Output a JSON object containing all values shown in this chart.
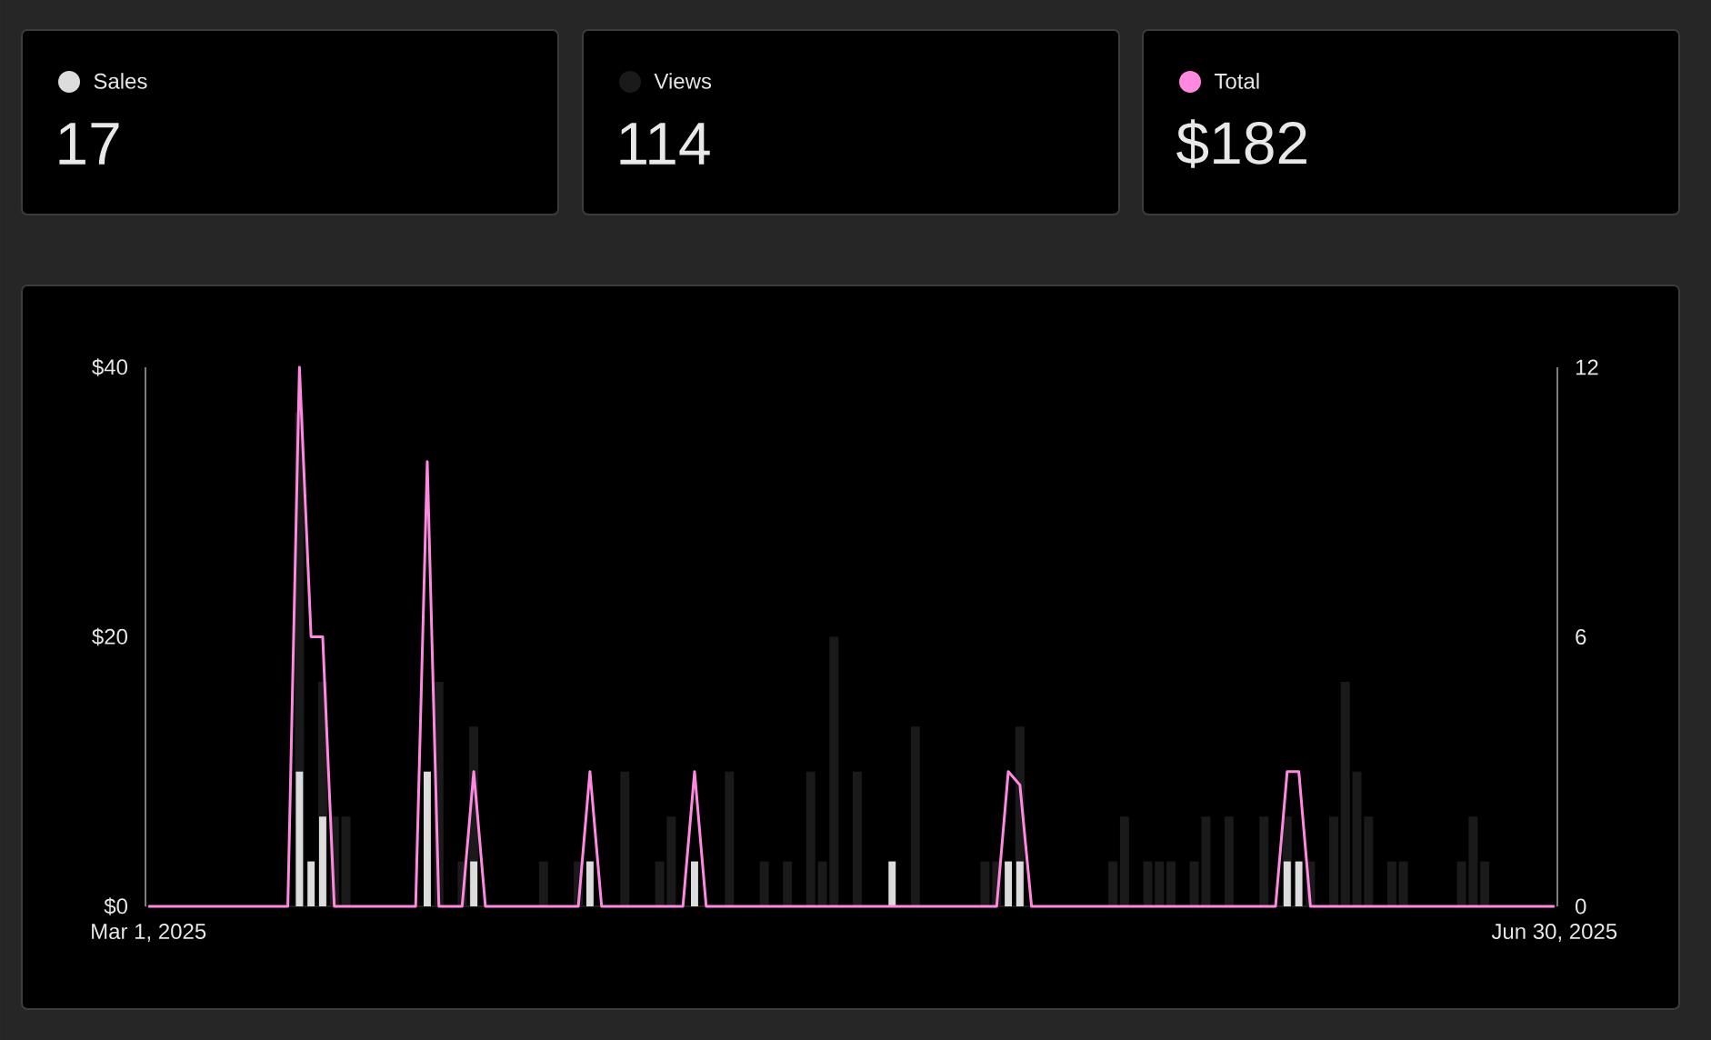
{
  "chart_data": {
    "type": "bar",
    "x": [
      "2025-03-01",
      "2025-03-02",
      "2025-03-03",
      "2025-03-04",
      "2025-03-05",
      "2025-03-06",
      "2025-03-07",
      "2025-03-08",
      "2025-03-09",
      "2025-03-10",
      "2025-03-11",
      "2025-03-12",
      "2025-03-13",
      "2025-03-14",
      "2025-03-15",
      "2025-03-16",
      "2025-03-17",
      "2025-03-18",
      "2025-03-19",
      "2025-03-20",
      "2025-03-21",
      "2025-03-22",
      "2025-03-23",
      "2025-03-24",
      "2025-03-25",
      "2025-03-26",
      "2025-03-27",
      "2025-03-28",
      "2025-03-29",
      "2025-03-30",
      "2025-03-31",
      "2025-04-01",
      "2025-04-02",
      "2025-04-03",
      "2025-04-04",
      "2025-04-05",
      "2025-04-06",
      "2025-04-07",
      "2025-04-08",
      "2025-04-09",
      "2025-04-10",
      "2025-04-11",
      "2025-04-12",
      "2025-04-13",
      "2025-04-14",
      "2025-04-15",
      "2025-04-16",
      "2025-04-17",
      "2025-04-18",
      "2025-04-19",
      "2025-04-20",
      "2025-04-21",
      "2025-04-22",
      "2025-04-23",
      "2025-04-24",
      "2025-04-25",
      "2025-04-26",
      "2025-04-27",
      "2025-04-28",
      "2025-04-29",
      "2025-04-30",
      "2025-05-01",
      "2025-05-02",
      "2025-05-03",
      "2025-05-04",
      "2025-05-05",
      "2025-05-06",
      "2025-05-07",
      "2025-05-08",
      "2025-05-09",
      "2025-05-10",
      "2025-05-11",
      "2025-05-12",
      "2025-05-13",
      "2025-05-14",
      "2025-05-15",
      "2025-05-16",
      "2025-05-17",
      "2025-05-18",
      "2025-05-19",
      "2025-05-20",
      "2025-05-21",
      "2025-05-22",
      "2025-05-23",
      "2025-05-24",
      "2025-05-25",
      "2025-05-26",
      "2025-05-27",
      "2025-05-28",
      "2025-05-29",
      "2025-05-30",
      "2025-05-31",
      "2025-06-01",
      "2025-06-02",
      "2025-06-03",
      "2025-06-04",
      "2025-06-05",
      "2025-06-06",
      "2025-06-07",
      "2025-06-08",
      "2025-06-09",
      "2025-06-10",
      "2025-06-11",
      "2025-06-12",
      "2025-06-13",
      "2025-06-14",
      "2025-06-15",
      "2025-06-16",
      "2025-06-17",
      "2025-06-18",
      "2025-06-19",
      "2025-06-20",
      "2025-06-21",
      "2025-06-22",
      "2025-06-23",
      "2025-06-24",
      "2025-06-25",
      "2025-06-26",
      "2025-06-27",
      "2025-06-28",
      "2025-06-29",
      "2025-06-30"
    ],
    "xlim": [
      "2025-03-01",
      "2025-06-30"
    ],
    "xticks": [
      {
        "value": "2025-03-01",
        "label": "Mar 1, 2025"
      },
      {
        "value": "2025-06-30",
        "label": "Jun 30, 2025"
      }
    ],
    "ylim": [
      0,
      40
    ],
    "yticks": [
      {
        "value": 0,
        "label": "$0"
      },
      {
        "value": 20,
        "label": "$20"
      },
      {
        "value": 40,
        "label": "$40"
      }
    ],
    "y2lim": [
      0,
      12
    ],
    "y2ticks": [
      0,
      6,
      12
    ],
    "legend": "top",
    "series": [
      {
        "name": "Sales",
        "color": "#dcdcdc",
        "axis": "y2",
        "values": [
          0,
          0,
          0,
          0,
          0,
          0,
          0,
          0,
          0,
          0,
          0,
          0,
          0,
          3,
          1,
          2,
          0,
          0,
          0,
          0,
          0,
          0,
          0,
          0,
          3,
          0,
          0,
          0,
          1,
          0,
          0,
          0,
          0,
          0,
          0,
          0,
          0,
          0,
          1,
          0,
          0,
          0,
          0,
          0,
          0,
          0,
          0,
          1,
          0,
          0,
          0,
          0,
          0,
          0,
          0,
          0,
          0,
          0,
          0,
          0,
          0,
          0,
          0,
          0,
          1,
          0,
          0,
          0,
          0,
          0,
          0,
          0,
          0,
          0,
          1,
          1,
          0,
          0,
          0,
          0,
          0,
          0,
          0,
          0,
          0,
          0,
          0,
          0,
          0,
          0,
          0,
          0,
          0,
          0,
          0,
          0,
          0,
          0,
          1,
          1,
          0,
          0,
          0,
          0,
          0,
          0,
          0,
          0,
          0,
          0,
          0,
          0,
          0,
          0,
          0,
          0,
          0,
          0,
          0,
          0,
          0,
          0
        ]
      },
      {
        "name": "Views",
        "color": "#1a1a1a",
        "axis": "y2",
        "values": [
          0,
          0,
          0,
          0,
          0,
          0,
          0,
          0,
          0,
          0,
          0,
          0,
          0,
          11,
          null,
          5,
          2,
          2,
          0,
          0,
          0,
          0,
          0,
          0,
          null,
          5,
          0,
          1,
          4,
          0,
          0,
          0,
          0,
          0,
          1,
          0,
          0,
          1,
          null,
          0,
          0,
          3,
          0,
          0,
          1,
          2,
          0,
          null,
          0,
          0,
          3,
          0,
          0,
          1,
          0,
          1,
          0,
          3,
          1,
          6,
          0,
          3,
          0,
          0,
          null,
          0,
          4,
          0,
          0,
          0,
          0,
          0,
          1,
          1,
          null,
          4,
          0,
          0,
          0,
          0,
          0,
          0,
          0,
          1,
          2,
          0,
          1,
          1,
          1,
          0,
          1,
          2,
          0,
          2,
          0,
          0,
          2,
          0,
          2,
          null,
          1,
          0,
          2,
          5,
          3,
          2,
          0,
          1,
          1,
          0,
          0,
          0,
          0,
          1,
          2,
          1,
          0,
          0,
          0,
          0,
          0,
          0
        ]
      },
      {
        "name": "Total",
        "color": "#ff88e0",
        "type": "line",
        "values": [
          0,
          0,
          0,
          0,
          0,
          0,
          0,
          0,
          0,
          0,
          0,
          0,
          0,
          40,
          20,
          20,
          0,
          0,
          0,
          0,
          0,
          0,
          0,
          0,
          33,
          0,
          0,
          0,
          10,
          0,
          0,
          0,
          0,
          0,
          0,
          0,
          0,
          0,
          10,
          0,
          0,
          0,
          0,
          0,
          0,
          0,
          0,
          10,
          0,
          0,
          0,
          0,
          0,
          0,
          0,
          0,
          0,
          0,
          0,
          0,
          0,
          0,
          0,
          0,
          0,
          0,
          0,
          0,
          0,
          0,
          0,
          0,
          0,
          0,
          10,
          9,
          0,
          0,
          0,
          0,
          0,
          0,
          0,
          0,
          0,
          0,
          0,
          0,
          0,
          0,
          0,
          0,
          0,
          0,
          0,
          0,
          0,
          0,
          10,
          10,
          0,
          0,
          0,
          0,
          0,
          0,
          0,
          0,
          0,
          0,
          0,
          0,
          0,
          0,
          0,
          0,
          0,
          0,
          0,
          0,
          0,
          0
        ]
      }
    ],
    "annotations": [
      "17",
      "114",
      "$182"
    ]
  }
}
